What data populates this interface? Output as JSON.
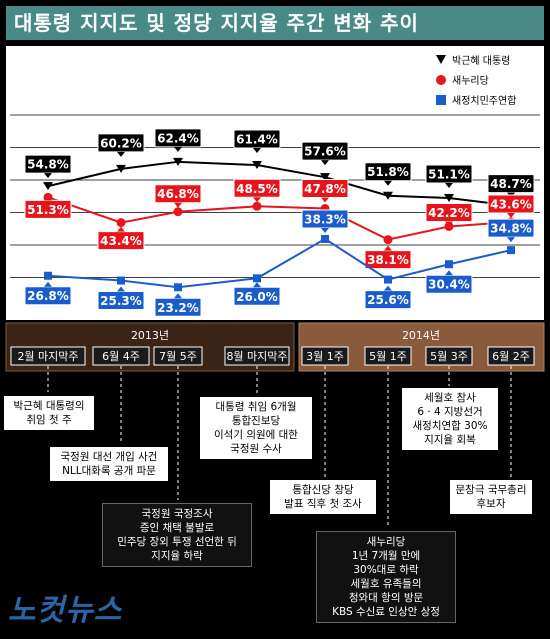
{
  "title": "대통령 지지도 및 정당 지지율 주간 변화 추이",
  "colors": {
    "president": "#000000",
    "saenuri": "#e8141c",
    "npad": "#1a5ccc",
    "title_bg": "#4a8a86",
    "period2013": "#3b2416",
    "period2014": "#8a5a3c"
  },
  "chart_data": {
    "type": "line",
    "categories": [
      "2월 마지막주",
      "6월 4주",
      "7월 5주",
      "8월 마지막주",
      "3월 1주",
      "5월 1주",
      "5월 3주",
      "6월 2주"
    ],
    "series": [
      {
        "name": "박근혜 대통령",
        "values": [
          54.8,
          60.2,
          62.4,
          61.4,
          57.6,
          51.8,
          51.1,
          48.7
        ],
        "labels": [
          "54.8%",
          "60.2%",
          "62.4%",
          "61.4%",
          "57.6%",
          "51.8%",
          "51.1%",
          "48.7%"
        ],
        "marker": "triangle-down"
      },
      {
        "name": "새누리당",
        "values": [
          51.3,
          43.4,
          46.8,
          48.5,
          47.8,
          38.1,
          42.2,
          43.6
        ],
        "labels": [
          "51.3%",
          "43.4%",
          "46.8%",
          "48.5%",
          "47.8%",
          "38.1%",
          "42.2%",
          "43.6%"
        ],
        "marker": "circle"
      },
      {
        "name": "새정치민주연합",
        "values": [
          26.8,
          25.3,
          23.2,
          26.0,
          38.3,
          25.6,
          30.4,
          34.8
        ],
        "labels": [
          "26.8%",
          "25.3%",
          "23.2%",
          "26.0%",
          "38.3%",
          "25.6%",
          "30.4%",
          "34.8%"
        ],
        "marker": "square"
      }
    ],
    "legend_placement": "top-right",
    "grid": true,
    "periods": [
      {
        "label": "2013년",
        "weeks": [
          "2월 마지막주",
          "6월 4주",
          "7월 5주",
          "8월 마지막주"
        ]
      },
      {
        "label": "2014년",
        "weeks": [
          "3월 1주",
          "5월 1주",
          "5월 3주",
          "6월 2주"
        ]
      }
    ]
  },
  "annotations": [
    {
      "text": "박근혜 대통령의\n취임 첫 주",
      "dark": false
    },
    {
      "text": "국정원 대선 개입 사건\nNLL대화록 공개 파문",
      "dark": false
    },
    {
      "text": "국정원 국정조사\n증인 채택 불발로\n민주당 장외 투쟁 선언한 뒤\n지지율 하락",
      "dark": true
    },
    {
      "text": "대통령 취임 6개월\n통합진보당\n이석기 의원에 대한\n국정원 수사",
      "dark": false
    },
    {
      "text": "통합신당 창당\n발표 직후 첫 조사",
      "dark": false
    },
    {
      "text": "새누리당\n1년 7개월 만에\n30%대로 하락\n세월호 유족들의\n청와대 항의 방문\nKBS 수신료 인상안 상정",
      "dark": true
    },
    {
      "text": "세월호 참사\n6 · 4 지방선거\n새정치연합 30%\n지지율 회복",
      "dark": false
    },
    {
      "text": "문창극 국무총리\n후보자",
      "dark": false
    }
  ],
  "watermark": "노컷뉴스"
}
